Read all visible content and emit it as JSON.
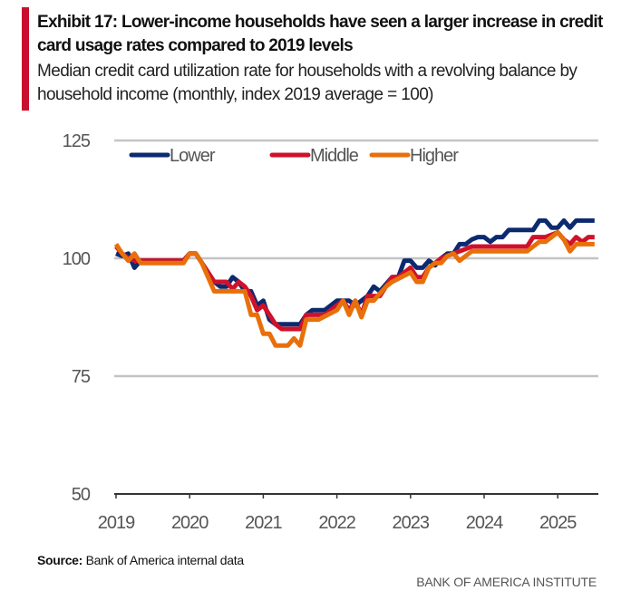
{
  "header": {
    "title": "Exhibit 17: Lower-income households have seen a larger increase in credit card usage rates compared to 2019 levels",
    "subtitle": "Median credit card utilization rate for households with a revolving balance by household income (monthly, index 2019 average = 100)"
  },
  "footer": {
    "source_label": "Source:",
    "source_text": "Bank of America internal data",
    "brand": "BANK OF AMERICA INSTITUTE"
  },
  "chart_data": {
    "type": "line",
    "title": "",
    "xlabel": "",
    "ylabel": "",
    "ylim": [
      50,
      125
    ],
    "yticks": [
      "50",
      "75",
      "100",
      "125"
    ],
    "xticks": [
      "2019",
      "2020",
      "2021",
      "2022",
      "2023",
      "2024",
      "2025"
    ],
    "grid": "horizontal",
    "legend": "top-left",
    "series": [
      {
        "name": "Lower",
        "color": "#0b2a6f",
        "points": [
          [
            "2019-01",
            101
          ],
          [
            "2019-02",
            100.5
          ],
          [
            "2019-03",
            101
          ],
          [
            "2019-04",
            98
          ],
          [
            "2019-05",
            99.5
          ],
          [
            "2019-08",
            99.5
          ],
          [
            "2019-12",
            99.5
          ],
          [
            "2020-01",
            101
          ],
          [
            "2020-02",
            101
          ],
          [
            "2020-04",
            97
          ],
          [
            "2020-05",
            95
          ],
          [
            "2020-06",
            94
          ],
          [
            "2020-07",
            94
          ],
          [
            "2020-08",
            96
          ],
          [
            "2020-09",
            95
          ],
          [
            "2020-10",
            93
          ],
          [
            "2020-11",
            93
          ],
          [
            "2020-12",
            90
          ],
          [
            "2021-01",
            91
          ],
          [
            "2021-02",
            87
          ],
          [
            "2021-03",
            86
          ],
          [
            "2021-07",
            86
          ],
          [
            "2021-08",
            88
          ],
          [
            "2021-09",
            89
          ],
          [
            "2021-11",
            89
          ],
          [
            "2022-01",
            91
          ],
          [
            "2022-03",
            91
          ],
          [
            "2022-04",
            90
          ],
          [
            "2022-06",
            92
          ],
          [
            "2022-07",
            94
          ],
          [
            "2022-08",
            93
          ],
          [
            "2022-10",
            96
          ],
          [
            "2022-11",
            96
          ],
          [
            "2022-12",
            99.5
          ],
          [
            "2023-01",
            99.5
          ],
          [
            "2023-02",
            98
          ],
          [
            "2023-03",
            98
          ],
          [
            "2023-04",
            99.5
          ],
          [
            "2023-05",
            98.5
          ],
          [
            "2023-06",
            100
          ],
          [
            "2023-07",
            101
          ],
          [
            "2023-08",
            101
          ],
          [
            "2023-09",
            103
          ],
          [
            "2023-10",
            103
          ],
          [
            "2023-11",
            104
          ],
          [
            "2023-12",
            104.5
          ],
          [
            "2024-01",
            104.5
          ],
          [
            "2024-02",
            103.5
          ],
          [
            "2024-03",
            104.5
          ],
          [
            "2024-04",
            104.5
          ],
          [
            "2024-05",
            106
          ],
          [
            "2024-09",
            106
          ],
          [
            "2024-10",
            108
          ],
          [
            "2024-11",
            108
          ],
          [
            "2024-12",
            106.5
          ],
          [
            "2025-01",
            106.5
          ],
          [
            "2025-02",
            108
          ],
          [
            "2025-03",
            106.5
          ],
          [
            "2025-04",
            108
          ],
          [
            "2025-07",
            108
          ]
        ]
      },
      {
        "name": "Middle",
        "color": "#d0112b",
        "points": [
          [
            "2019-01",
            102.5
          ],
          [
            "2019-02",
            101
          ],
          [
            "2019-03",
            100
          ],
          [
            "2019-04",
            99.5
          ],
          [
            "2019-12",
            99.5
          ],
          [
            "2020-01",
            101
          ],
          [
            "2020-02",
            101
          ],
          [
            "2020-04",
            97
          ],
          [
            "2020-05",
            95
          ],
          [
            "2020-07",
            95
          ],
          [
            "2020-08",
            93.5
          ],
          [
            "2020-09",
            95
          ],
          [
            "2020-10",
            94
          ],
          [
            "2020-11",
            92
          ],
          [
            "2020-12",
            89
          ],
          [
            "2021-01",
            90
          ],
          [
            "2021-02",
            88
          ],
          [
            "2021-03",
            86
          ],
          [
            "2021-04",
            85
          ],
          [
            "2021-07",
            85
          ],
          [
            "2021-08",
            88
          ],
          [
            "2021-11",
            88
          ],
          [
            "2022-01",
            90
          ],
          [
            "2022-02",
            91
          ],
          [
            "2022-03",
            89
          ],
          [
            "2022-04",
            91
          ],
          [
            "2022-05",
            88
          ],
          [
            "2022-06",
            92
          ],
          [
            "2022-08",
            92
          ],
          [
            "2022-09",
            94
          ],
          [
            "2022-10",
            96
          ],
          [
            "2022-11",
            96
          ],
          [
            "2023-01",
            98
          ],
          [
            "2023-02",
            96
          ],
          [
            "2023-03",
            96
          ],
          [
            "2023-04",
            98
          ],
          [
            "2023-05",
            99
          ],
          [
            "2023-06",
            100
          ],
          [
            "2023-08",
            101
          ],
          [
            "2023-09",
            101.5
          ],
          [
            "2023-11",
            102.5
          ],
          [
            "2024-08",
            102.5
          ],
          [
            "2024-09",
            104.5
          ],
          [
            "2024-11",
            104.5
          ],
          [
            "2025-01",
            105.5
          ],
          [
            "2025-02",
            104
          ],
          [
            "2025-03",
            103
          ],
          [
            "2025-04",
            104.5
          ],
          [
            "2025-05",
            103.5
          ],
          [
            "2025-06",
            104.5
          ],
          [
            "2025-07",
            104.5
          ]
        ]
      },
      {
        "name": "Higher",
        "color": "#e8700a",
        "points": [
          [
            "2019-01",
            103
          ],
          [
            "2019-02",
            101
          ],
          [
            "2019-03",
            99.5
          ],
          [
            "2019-04",
            101
          ],
          [
            "2019-05",
            99
          ],
          [
            "2019-12",
            99
          ],
          [
            "2020-01",
            101
          ],
          [
            "2020-02",
            101
          ],
          [
            "2020-03",
            99
          ],
          [
            "2020-05",
            93
          ],
          [
            "2020-10",
            93
          ],
          [
            "2020-11",
            88
          ],
          [
            "2020-12",
            88
          ],
          [
            "2021-01",
            84
          ],
          [
            "2021-02",
            84
          ],
          [
            "2021-03",
            81.5
          ],
          [
            "2021-05",
            81.5
          ],
          [
            "2021-06",
            83
          ],
          [
            "2021-07",
            81.5
          ],
          [
            "2021-08",
            87
          ],
          [
            "2021-10",
            87
          ],
          [
            "2022-01",
            89
          ],
          [
            "2022-02",
            91
          ],
          [
            "2022-03",
            88
          ],
          [
            "2022-04",
            91
          ],
          [
            "2022-05",
            87.5
          ],
          [
            "2022-06",
            91
          ],
          [
            "2022-07",
            91
          ],
          [
            "2022-09",
            94
          ],
          [
            "2022-10",
            95
          ],
          [
            "2023-01",
            97
          ],
          [
            "2023-02",
            95
          ],
          [
            "2023-03",
            95
          ],
          [
            "2023-04",
            98
          ],
          [
            "2023-05",
            99
          ],
          [
            "2023-06",
            99
          ],
          [
            "2023-07",
            100.5
          ],
          [
            "2023-08",
            101
          ],
          [
            "2023-09",
            99.5
          ],
          [
            "2023-11",
            101.5
          ],
          [
            "2024-08",
            101.5
          ],
          [
            "2024-10",
            103.5
          ],
          [
            "2024-11",
            103.5
          ],
          [
            "2025-01",
            105.5
          ],
          [
            "2025-02",
            104
          ],
          [
            "2025-03",
            101.5
          ],
          [
            "2025-04",
            103
          ],
          [
            "2025-07",
            103
          ]
        ]
      }
    ]
  }
}
